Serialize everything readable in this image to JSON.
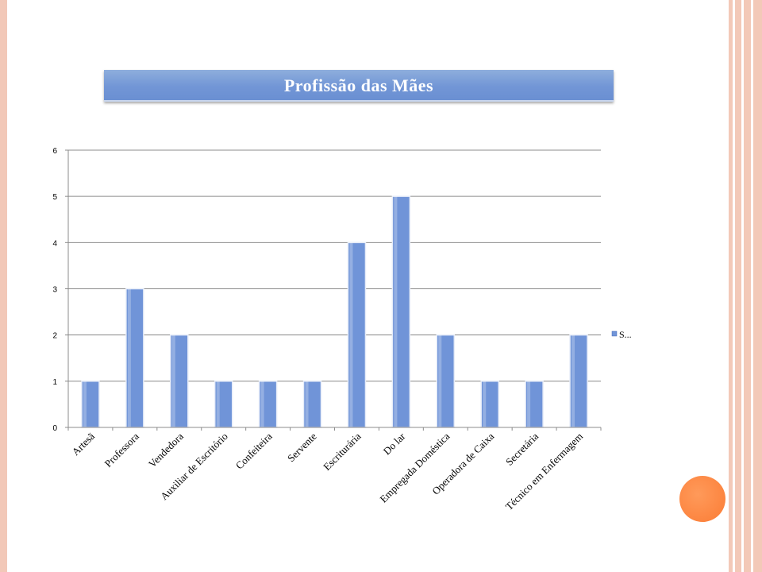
{
  "chart_data": {
    "type": "bar",
    "title": "Profissão das  Mães",
    "categories": [
      "Artesã",
      "Professora",
      "Vendedora",
      "Auxiliar de Escritório",
      "Confeiteira",
      "Servente",
      "Escriturária",
      "Do lar",
      "Empregada Doméstica",
      "Operadora de Caixa",
      "Secretária",
      "Técnico em Enfermagem"
    ],
    "series": [
      {
        "values": [
          1,
          3,
          2,
          1,
          1,
          1,
          4,
          5,
          2,
          1,
          1,
          2
        ]
      }
    ],
    "ylim": [
      0,
      6
    ],
    "yticks": [
      0,
      1,
      2,
      3,
      4,
      5,
      6
    ],
    "legend": {
      "label": "S...",
      "placement": "right"
    },
    "grid": true,
    "bar_color": "#7094d8"
  }
}
